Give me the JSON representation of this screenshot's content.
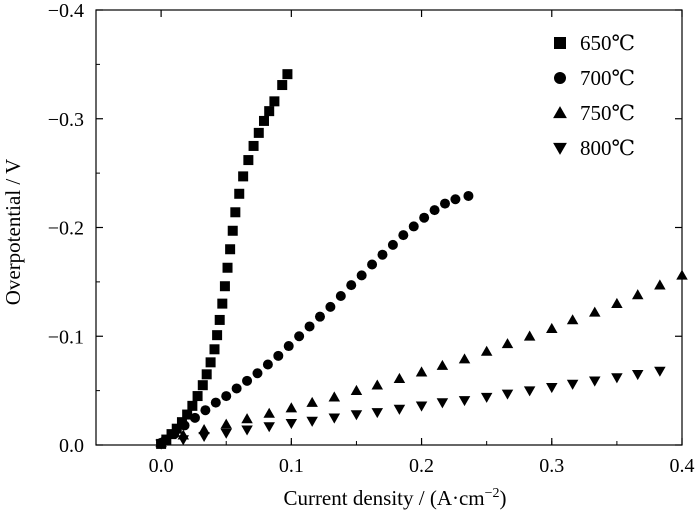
{
  "chart_data": {
    "type": "scatter",
    "xlabel": "Current density / (A·cm",
    "xlabel_sup": "−2",
    "xlabel_end": ")",
    "ylabel": "Overpotential / V",
    "xlim": [
      -0.05,
      0.4
    ],
    "ylim": [
      0.0,
      -0.4
    ],
    "y_axis_inverted": true,
    "xticks": [
      0.0,
      0.1,
      0.2,
      0.3,
      0.4
    ],
    "xtick_labels": [
      "0.0",
      "0.1",
      "0.2",
      "0.3",
      "0.4"
    ],
    "yticks": [
      0.0,
      -0.1,
      -0.2,
      -0.3,
      -0.4
    ],
    "ytick_labels": [
      "0.0",
      "−0.1",
      "−0.2",
      "−0.3",
      "−0.4"
    ],
    "grid": false,
    "legend_position": "top-right",
    "series": [
      {
        "name": "650℃",
        "marker": "square",
        "x": [
          0.0,
          0.004,
          0.008,
          0.012,
          0.016,
          0.02,
          0.024,
          0.028,
          0.032,
          0.035,
          0.038,
          0.041,
          0.043,
          0.045,
          0.047,
          0.049,
          0.051,
          0.053,
          0.055,
          0.057,
          0.06,
          0.063,
          0.067,
          0.071,
          0.075,
          0.079,
          0.083,
          0.087,
          0.093,
          0.097
        ],
        "y": [
          -0.001,
          -0.005,
          -0.01,
          -0.015,
          -0.021,
          -0.028,
          -0.036,
          -0.045,
          -0.055,
          -0.065,
          -0.076,
          -0.088,
          -0.101,
          -0.115,
          -0.13,
          -0.146,
          -0.163,
          -0.18,
          -0.197,
          -0.214,
          -0.231,
          -0.247,
          -0.262,
          -0.275,
          -0.287,
          -0.298,
          -0.307,
          -0.316,
          -0.331,
          -0.341
        ]
      },
      {
        "name": "700℃",
        "marker": "circle",
        "x": [
          0.0,
          0.01,
          0.018,
          0.026,
          0.034,
          0.042,
          0.05,
          0.058,
          0.066,
          0.074,
          0.082,
          0.09,
          0.098,
          0.106,
          0.114,
          0.122,
          0.13,
          0.138,
          0.146,
          0.154,
          0.162,
          0.17,
          0.178,
          0.186,
          0.194,
          0.202,
          0.21,
          0.218,
          0.226,
          0.236
        ],
        "y": [
          -0.002,
          -0.01,
          -0.018,
          -0.025,
          -0.032,
          -0.039,
          -0.045,
          -0.052,
          -0.059,
          -0.066,
          -0.074,
          -0.082,
          -0.091,
          -0.1,
          -0.109,
          -0.118,
          -0.127,
          -0.137,
          -0.147,
          -0.156,
          -0.166,
          -0.175,
          -0.184,
          -0.193,
          -0.201,
          -0.209,
          -0.216,
          -0.222,
          -0.226,
          -0.229
        ]
      },
      {
        "name": "750℃",
        "marker": "triangle-up",
        "x": [
          0.0,
          0.017,
          0.033,
          0.05,
          0.066,
          0.083,
          0.1,
          0.116,
          0.133,
          0.15,
          0.166,
          0.183,
          0.2,
          0.216,
          0.233,
          0.25,
          0.266,
          0.283,
          0.3,
          0.316,
          0.333,
          0.35,
          0.366,
          0.383,
          0.4
        ],
        "y": [
          -0.002,
          -0.009,
          -0.014,
          -0.019,
          -0.024,
          -0.029,
          -0.034,
          -0.039,
          -0.044,
          -0.05,
          -0.055,
          -0.061,
          -0.067,
          -0.073,
          -0.079,
          -0.086,
          -0.093,
          -0.1,
          -0.107,
          -0.115,
          -0.122,
          -0.13,
          -0.138,
          -0.147,
          -0.156
        ]
      },
      {
        "name": "800℃",
        "marker": "triangle-down",
        "x": [
          0.0,
          0.017,
          0.033,
          0.05,
          0.066,
          0.083,
          0.1,
          0.116,
          0.133,
          0.15,
          0.166,
          0.183,
          0.2,
          0.216,
          0.233,
          0.25,
          0.266,
          0.283,
          0.3,
          0.316,
          0.333,
          0.35,
          0.366,
          0.383
        ],
        "y": [
          -0.001,
          -0.005,
          -0.008,
          -0.011,
          -0.014,
          -0.017,
          -0.02,
          -0.022,
          -0.025,
          -0.028,
          -0.03,
          -0.033,
          -0.036,
          -0.039,
          -0.041,
          -0.044,
          -0.047,
          -0.05,
          -0.053,
          -0.056,
          -0.059,
          -0.062,
          -0.065,
          -0.068
        ]
      }
    ]
  }
}
